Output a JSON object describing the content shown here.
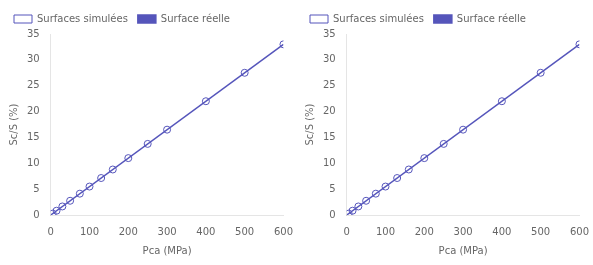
{
  "chart_data": [
    {
      "type": "line",
      "xlabel": "Pca (MPa)",
      "ylabel": "Sc/S (%)",
      "xlim": [
        0,
        600
      ],
      "ylim": [
        0,
        35
      ],
      "xticks": [
        0,
        100,
        200,
        300,
        400,
        500,
        600
      ],
      "yticks": [
        0,
        5,
        10,
        15,
        20,
        25,
        30,
        35
      ],
      "grid": false,
      "legend": "upper left",
      "series": [
        {
          "name": "Surface réelle",
          "type": "line",
          "line_style": "solid",
          "color": "#5555bb",
          "x": [
            0,
            600
          ],
          "values": [
            0,
            33
          ]
        },
        {
          "name": "Surfaces simulées",
          "type": "scatter",
          "marker": "circle",
          "color": "#5555bb",
          "x": [
            5,
            15,
            30,
            50,
            75,
            100,
            130,
            160,
            200,
            250,
            300,
            400,
            500,
            600
          ],
          "values": [
            0.275,
            0.825,
            1.65,
            2.75,
            4.125,
            5.5,
            7.15,
            8.8,
            11,
            13.75,
            16.5,
            22,
            27.5,
            33
          ]
        }
      ]
    },
    {
      "type": "line",
      "xlabel": "Pca (MPa)",
      "ylabel": "Sc/S (%)",
      "xlim": [
        0,
        600
      ],
      "ylim": [
        0,
        35
      ],
      "xticks": [
        0,
        100,
        200,
        300,
        400,
        500,
        600
      ],
      "yticks": [
        0,
        5,
        10,
        15,
        20,
        25,
        30,
        35
      ],
      "grid": false,
      "legend": "upper left",
      "series": [
        {
          "name": "Surface réelle",
          "type": "line",
          "line_style": "solid",
          "color": "#5555bb",
          "x": [
            0,
            600
          ],
          "values": [
            0,
            33
          ]
        },
        {
          "name": "Surfaces simulées",
          "type": "scatter",
          "marker": "circle",
          "color": "#5555bb",
          "x": [
            5,
            15,
            30,
            50,
            75,
            100,
            130,
            160,
            200,
            250,
            300,
            400,
            500,
            600
          ],
          "values": [
            0.275,
            0.825,
            1.65,
            2.75,
            4.125,
            5.5,
            7.15,
            8.8,
            11,
            13.75,
            16.5,
            22,
            27.5,
            33
          ]
        }
      ]
    }
  ]
}
